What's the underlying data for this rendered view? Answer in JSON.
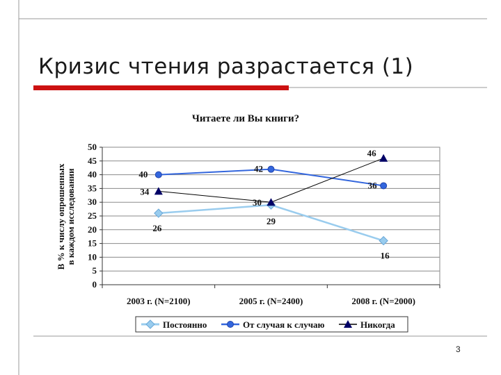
{
  "slide": {
    "title": "Кризис чтения разрастается (1)",
    "page_number": "3"
  },
  "colors": {
    "accent_bar": "#cc1111",
    "frame_line": "#9a9a9a",
    "series_1": "#99ccee",
    "series_2": "#3366dd",
    "series_3": "#000066"
  },
  "chart_data": {
    "type": "line",
    "title": "Читаете ли Вы книги?",
    "ylabel": "В % к числу опрошенных в каждом исследовании",
    "ylabel_lines": [
      "В % к числу опрошенных",
      "в каждом исследовании"
    ],
    "xlabel": "",
    "categories": [
      "2003 г. (N=2100)",
      "2005 г. (N=2400)",
      "2008 г. (N=2000)"
    ],
    "ylim": [
      0,
      50
    ],
    "yticks": [
      "0",
      "5",
      "10",
      "15",
      "20",
      "25",
      "30",
      "35",
      "40",
      "45",
      "50"
    ],
    "grid": true,
    "legend_position": "bottom",
    "series": [
      {
        "name": "Постоянно",
        "values": [
          26,
          29,
          16
        ],
        "labels": [
          "26",
          "29",
          "16"
        ],
        "marker": "diamond",
        "color": "#99ccee"
      },
      {
        "name": "От случая к случаю",
        "values": [
          40,
          42,
          36
        ],
        "labels": [
          "40",
          "42",
          "36"
        ],
        "marker": "circle",
        "color": "#3366dd"
      },
      {
        "name": "Никогда",
        "values": [
          34,
          30,
          46
        ],
        "labels": [
          "34",
          "30",
          "46"
        ],
        "marker": "triangle",
        "color": "#000066"
      }
    ]
  }
}
